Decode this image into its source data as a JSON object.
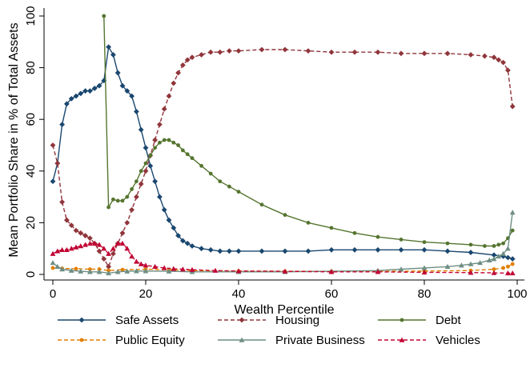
{
  "chart_data": {
    "type": "line",
    "xlabel": "Wealth Percentile",
    "ylabel": "Mean Portfolio Share in % of Total Assets",
    "xlim": [
      0,
      100
    ],
    "ylim": [
      0,
      100
    ],
    "xticks": [
      0,
      20,
      40,
      60,
      80,
      100
    ],
    "yticks": [
      0,
      20,
      40,
      60,
      80,
      100
    ],
    "grid": false,
    "legend_position": "bottom",
    "legend_columns": 3,
    "series": [
      {
        "name": "Safe Assets",
        "color": "#1a476f",
        "dash": "solid",
        "marker": "diamond",
        "x": [
          0,
          1,
          2,
          3,
          4,
          5,
          6,
          7,
          8,
          9,
          10,
          11,
          12,
          13,
          14,
          15,
          16,
          17,
          18,
          19,
          20,
          21,
          22,
          23,
          24,
          25,
          26,
          27,
          28,
          29,
          30,
          32,
          34,
          36,
          38,
          40,
          45,
          50,
          55,
          60,
          65,
          70,
          75,
          80,
          85,
          90,
          95,
          97,
          98,
          99
        ],
        "values": [
          36,
          43,
          58,
          66,
          68,
          69,
          70,
          71,
          71,
          72,
          73,
          75,
          88,
          85,
          78,
          73,
          71,
          69,
          63,
          56,
          49,
          42,
          36,
          30,
          25,
          21,
          18,
          15,
          13,
          12,
          11,
          10,
          9.5,
          9,
          9,
          9,
          9,
          9,
          9,
          9.5,
          9.5,
          9.5,
          9.5,
          9.5,
          9,
          8.5,
          7.5,
          7,
          6.5,
          6
        ]
      },
      {
        "name": "Housing",
        "color": "#90353b",
        "dash": "dash",
        "marker": "diamond",
        "x": [
          0,
          1,
          2,
          3,
          4,
          5,
          6,
          7,
          8,
          9,
          10,
          11,
          12,
          13,
          14,
          15,
          16,
          17,
          18,
          19,
          20,
          21,
          22,
          23,
          24,
          25,
          26,
          27,
          28,
          29,
          30,
          32,
          34,
          36,
          38,
          40,
          45,
          50,
          55,
          60,
          65,
          70,
          75,
          80,
          85,
          90,
          93,
          95,
          96,
          97,
          98,
          99
        ],
        "values": [
          50,
          43,
          28,
          21,
          19,
          17,
          16,
          15,
          14,
          12,
          9,
          6,
          3,
          8,
          12,
          16,
          20,
          25,
          30,
          35,
          40,
          46,
          52,
          58,
          64,
          69,
          74,
          78,
          81,
          83,
          84,
          85,
          86,
          86,
          86.5,
          86.5,
          87,
          87,
          86.5,
          86,
          86,
          86,
          85.5,
          85.5,
          85.5,
          85,
          84.5,
          84,
          83,
          82,
          79,
          65
        ]
      },
      {
        "name": "Debt",
        "color": "#55752f",
        "dash": "solid",
        "marker": "circle",
        "x": [
          11,
          12,
          13,
          14,
          15,
          16,
          17,
          18,
          19,
          20,
          21,
          22,
          23,
          24,
          25,
          26,
          27,
          28,
          29,
          30,
          32,
          34,
          36,
          38,
          40,
          45,
          50,
          55,
          60,
          65,
          70,
          75,
          80,
          85,
          90,
          93,
          95,
          96,
          97,
          98,
          99
        ],
        "values": [
          100,
          26,
          29,
          28.5,
          28.5,
          30,
          33,
          36,
          40,
          43,
          46,
          49,
          51,
          52,
          52,
          51,
          50,
          48,
          46.5,
          45,
          42,
          39,
          36,
          34,
          32,
          27,
          23,
          20,
          18,
          16,
          14.5,
          13.5,
          12.5,
          12,
          11.5,
          11,
          11,
          11.5,
          12,
          14,
          17
        ]
      },
      {
        "name": "Public Equity",
        "color": "#e37e00",
        "dash": "dash",
        "marker": "circle",
        "x": [
          0,
          2,
          5,
          8,
          10,
          12,
          15,
          20,
          25,
          30,
          40,
          50,
          60,
          70,
          80,
          90,
          95,
          97,
          98,
          99
        ],
        "values": [
          2.5,
          2.3,
          2.2,
          2,
          2,
          1.5,
          1.8,
          2,
          1.8,
          1.5,
          1.3,
          1.2,
          1.2,
          1.2,
          1.3,
          1.5,
          2,
          2.5,
          3,
          4
        ]
      },
      {
        "name": "Private Business",
        "color": "#6e8e84",
        "dash": "solid",
        "marker": "triangle",
        "x": [
          0,
          1,
          2,
          4,
          6,
          8,
          10,
          12,
          14,
          16,
          18,
          20,
          25,
          30,
          40,
          50,
          60,
          70,
          75,
          80,
          85,
          88,
          90,
          92,
          94,
          95,
          96,
          97,
          98,
          99
        ],
        "values": [
          4.5,
          3,
          2,
          1.5,
          1.2,
          1,
          1,
          0.5,
          1,
          1.2,
          1.3,
          1.3,
          1.2,
          1,
          1,
          1,
          1.2,
          1.5,
          2,
          2.5,
          3,
          3.5,
          4,
          4.5,
          5.5,
          6,
          7,
          8,
          10,
          24
        ]
      },
      {
        "name": "Vehicles",
        "color": "#c10534",
        "dash": "dash",
        "marker": "triangle",
        "x": [
          0,
          1,
          2,
          3,
          4,
          5,
          6,
          7,
          8,
          9,
          10,
          11,
          12,
          13,
          14,
          15,
          16,
          17,
          18,
          19,
          20,
          22,
          24,
          26,
          28,
          30,
          35,
          40,
          50,
          60,
          70,
          80,
          90,
          95,
          98,
          99
        ],
        "values": [
          8,
          9,
          9.5,
          9.5,
          10,
          10.5,
          11,
          11.5,
          12,
          12,
          11.5,
          10,
          8,
          10,
          12,
          12,
          10,
          7,
          5,
          4,
          3.5,
          3,
          2.5,
          2.2,
          2,
          1.8,
          1.5,
          1.3,
          1.2,
          1,
          1,
          0.8,
          0.7,
          0.6,
          0.5,
          0.5
        ]
      }
    ]
  }
}
